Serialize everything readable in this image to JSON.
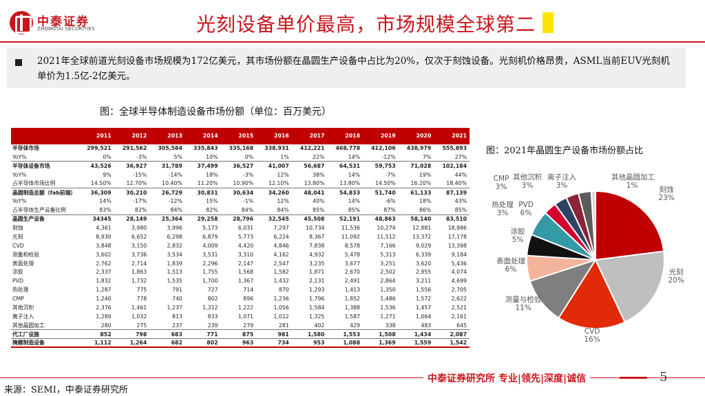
{
  "header": {
    "logo_cn": "中泰证券",
    "logo_en": "ZHONGTAI SECURITIES",
    "title": "光刻设备单价最高，市场规模全球第二"
  },
  "bullet": {
    "text": "2021年全球前道光刻设备市场规模为172亿美元，其市场份额在晶圆生产设备中占比为20%，仅次于刻蚀设备。光刻机价格昂贵，ASML当前EUV光刻机单价为1.5亿-2亿美元。"
  },
  "captions": {
    "table": "图：全球半导体制造设备市场份额（单位：百万美元）",
    "pie": "图：2021年晶圆生产设备市场份额占比"
  },
  "table": {
    "headers": [
      "",
      "2011",
      "2012",
      "2013",
      "2014",
      "2015",
      "2016",
      "2017",
      "2018",
      "2019",
      "2020",
      "2021"
    ],
    "rows": [
      {
        "style": "bold",
        "cells": [
          "半导体市场",
          "299,521",
          "291,562",
          "305,584",
          "335,843",
          "335,168",
          "338,931",
          "412,221",
          "468,778",
          "412,106",
          "438,979",
          "555,893"
        ]
      },
      {
        "style": "",
        "cells": [
          "YoY%",
          "0%",
          "-3%",
          "5%",
          "10%",
          "0%",
          "1%",
          "22%",
          "14%",
          "-12%",
          "7%",
          "27%"
        ]
      },
      {
        "style": "bold sep",
        "cells": [
          "半导体设备市场",
          "43,526",
          "36,927",
          "31,789",
          "37,499",
          "36,527",
          "41,007",
          "56,687",
          "64,531",
          "59,753",
          "71,028",
          "102,184"
        ]
      },
      {
        "style": "",
        "cells": [
          "YoY%",
          "9%",
          "-15%",
          "-14%",
          "18%",
          "-3%",
          "12%",
          "38%",
          "14%",
          "-7%",
          "19%",
          "44%"
        ]
      },
      {
        "style": "",
        "cells": [
          "占半导体市场比例",
          "14.50%",
          "12.70%",
          "10.40%",
          "11.20%",
          "10.90%",
          "12.10%",
          "13.80%",
          "13.80%",
          "14.50%",
          "16.20%",
          "18.40%"
        ]
      },
      {
        "style": "bold sep",
        "cells": [
          "晶圆制造总额（fab前端）",
          "36,309",
          "30,210",
          "26,729",
          "30,831",
          "30,634",
          "34,260",
          "48,041",
          "54,833",
          "51,740",
          "61,133",
          "87,139"
        ]
      },
      {
        "style": "",
        "cells": [
          "YoY%",
          "14%",
          "-17%",
          "-12%",
          "15%",
          "-1%",
          "12%",
          "40%",
          "14%",
          "-6%",
          "18%",
          "43%"
        ]
      },
      {
        "style": "",
        "cells": [
          "占半导体生产设备比例",
          "83%",
          "82%",
          "84%",
          "82%",
          "84%",
          "84%",
          "85%",
          "85%",
          "87%",
          "86%",
          "85%"
        ]
      },
      {
        "style": "bold sep",
        "cells": [
          "晶圆生产设备",
          "34345",
          "28,149",
          "25,364",
          "29,258",
          "28,796",
          "32,545",
          "45,508",
          "52,191",
          "48,863",
          "58,140",
          "83,510"
        ]
      },
      {
        "style": "",
        "cells": [
          "刻蚀",
          "4,361",
          "3,980",
          "3,996",
          "5,173",
          "6,031",
          "7,297",
          "10,734",
          "11,536",
          "10,274",
          "12,881",
          "18,886"
        ]
      },
      {
        "style": "",
        "cells": [
          "光刻",
          "8,930",
          "6,652",
          "6,298",
          "6,879",
          "5,773",
          "6,224",
          "8,367",
          "11,092",
          "11,512",
          "13,372",
          "17,178"
        ]
      },
      {
        "style": "",
        "cells": [
          "CVD",
          "3,848",
          "3,150",
          "2,832",
          "4,009",
          "4,420",
          "4,846",
          "7,838",
          "8,578",
          "7,166",
          "9,029",
          "13,398"
        ]
      },
      {
        "style": "",
        "cells": [
          "测量和检验",
          "3,602",
          "3,736",
          "3,534",
          "3,531",
          "3,310",
          "4,162",
          "4,932",
          "5,478",
          "5,313",
          "6,339",
          "9,184"
        ]
      },
      {
        "style": "",
        "cells": [
          "表面处理",
          "2,762",
          "2,714",
          "1,839",
          "2,296",
          "2,147",
          "2,547",
          "3,235",
          "3,677",
          "3,251",
          "3,620",
          "5,436"
        ]
      },
      {
        "style": "",
        "cells": [
          "涂胶",
          "2,337",
          "1,863",
          "1,513",
          "1,755",
          "1,568",
          "1,582",
          "1,871",
          "2,670",
          "2,502",
          "2,955",
          "4,074"
        ]
      },
      {
        "style": "",
        "cells": [
          "PVD",
          "1,832",
          "1,732",
          "1,535",
          "1,700",
          "1,367",
          "1,432",
          "2,131",
          "2,491",
          "2,864",
          "3,211",
          "4,699"
        ]
      },
      {
        "style": "",
        "cells": [
          "热处理",
          "1,287",
          "775",
          "791",
          "727",
          "714",
          "870",
          "1,293",
          "1,413",
          "1,350",
          "1,556",
          "2,705"
        ]
      },
      {
        "style": "",
        "cells": [
          "CMP",
          "1,240",
          "778",
          "740",
          "802",
          "896",
          "1,236",
          "1,796",
          "1,852",
          "1,486",
          "1,572",
          "2,622"
        ]
      },
      {
        "style": "",
        "cells": [
          "其他沉积",
          "2,376",
          "1,461",
          "1,237",
          "1,312",
          "1,222",
          "1,056",
          "1,584",
          "1,388",
          "1,536",
          "1,457",
          "2,521"
        ]
      },
      {
        "style": "",
        "cells": [
          "离子注入",
          "1,289",
          "1,032",
          "813",
          "833",
          "1,071",
          "1,012",
          "1,325",
          "1,587",
          "1,271",
          "1,664",
          "2,161"
        ]
      },
      {
        "style": "",
        "cells": [
          "其他晶圆加工",
          "280",
          "275",
          "237",
          "239",
          "279",
          "281",
          "402",
          "429",
          "338",
          "483",
          "645"
        ]
      },
      {
        "style": "bold sep",
        "cells": [
          "代工厂设施",
          "852",
          "798",
          "683",
          "771",
          "875",
          "981",
          "1,580",
          "1,553",
          "1,508",
          "1,434",
          "2,087"
        ]
      },
      {
        "style": "bold sep last",
        "cells": [
          "掩模制造设备",
          "1,112",
          "1,264",
          "682",
          "802",
          "963",
          "734",
          "953",
          "1,088",
          "1,369",
          "1,559",
          "1,542"
        ]
      }
    ]
  },
  "chart_data": {
    "type": "pie",
    "title": "图：2021年晶圆生产设备市场份额占比",
    "slices": [
      {
        "label": "刻蚀",
        "pct": "23%",
        "value": 23,
        "color": "#c00000"
      },
      {
        "label": "光刻",
        "pct": "20%",
        "value": 20,
        "color": "#bfbfbf"
      },
      {
        "label": "CVD",
        "pct": "16%",
        "value": 16,
        "color": "#e02a08"
      },
      {
        "label": "测量与检验",
        "pct": "11%",
        "value": 11,
        "color": "#7f7f7f"
      },
      {
        "label": "表面处理",
        "pct": "6%",
        "value": 6,
        "color": "#f4b49c"
      },
      {
        "label": "涂胶",
        "pct": "5%",
        "value": 5,
        "color": "#111111"
      },
      {
        "label": "PVD",
        "pct": "6%",
        "value": 6,
        "color": "#339aa6"
      },
      {
        "label": "热处理",
        "pct": "3%",
        "value": 3,
        "color": "#d4002e"
      },
      {
        "label": "CMP",
        "pct": "3%",
        "value": 3,
        "color": "#2b4464"
      },
      {
        "label": "其他沉积",
        "pct": "3%",
        "value": 3,
        "color": "#8b2436"
      },
      {
        "label": "离子注入",
        "pct": "3%",
        "value": 3,
        "color": "#5c5c5c"
      },
      {
        "label": "其他晶圆加工",
        "pct": "1%",
        "value": 1,
        "color": "#d9d9d9"
      }
    ]
  },
  "footer": {
    "brand": "中泰证券研究所 专业|领先|深度|诚信",
    "page": "5",
    "source": "来源：SEMI，中泰证券研究所"
  }
}
